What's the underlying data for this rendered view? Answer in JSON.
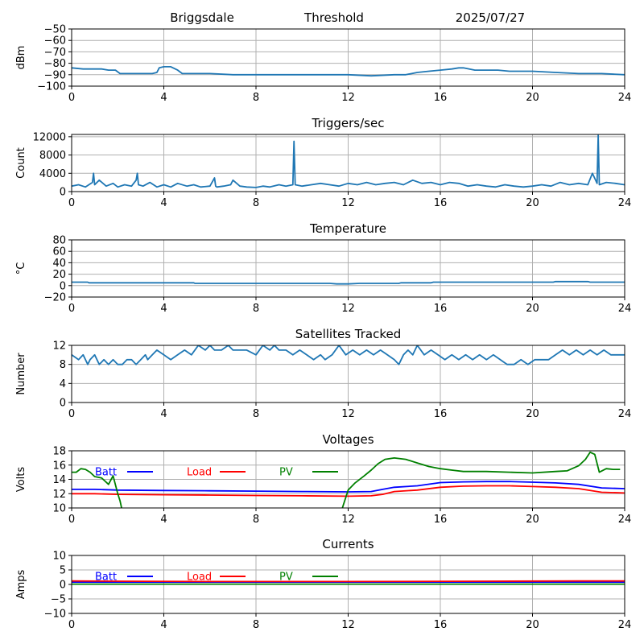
{
  "header": {
    "station": "Briggsdale",
    "panel": "Threshold",
    "date": "2025/07/27"
  },
  "colors": {
    "series_default": "#1f77b4",
    "batt": "#0000ff",
    "load": "#ff0000",
    "pv": "#008000",
    "grid": "#b0b0b0"
  },
  "chart_data": [
    {
      "id": "threshold",
      "type": "line",
      "title": "",
      "xlabel": "",
      "ylabel": "dBm",
      "xlim": [
        0,
        24
      ],
      "ylim": [
        -100,
        -50
      ],
      "xticks": [
        0,
        4,
        8,
        12,
        16,
        20,
        24
      ],
      "yticks": [
        -100,
        -90,
        -80,
        -70,
        -60,
        -50
      ],
      "grid": true,
      "series": [
        {
          "color": "#1f77b4",
          "x": [
            0,
            0.5,
            1,
            1.3,
            1.6,
            1.9,
            2.1,
            2.5,
            3,
            3.5,
            3.7,
            3.8,
            4,
            4.3,
            4.6,
            4.8,
            5,
            6,
            7,
            8,
            9,
            10,
            11,
            12,
            13,
            14,
            14.5,
            15,
            15.5,
            16,
            16.5,
            16.8,
            17,
            17.5,
            18,
            18.5,
            19,
            20,
            21,
            22,
            23,
            24
          ],
          "y": [
            -84,
            -85,
            -85,
            -85,
            -86,
            -86,
            -89,
            -89,
            -89,
            -89,
            -88,
            -84,
            -83,
            -83,
            -86,
            -89,
            -89,
            -89,
            -90,
            -90,
            -90,
            -90,
            -90,
            -90,
            -91,
            -90,
            -90,
            -88,
            -87,
            -86,
            -85,
            -84,
            -84,
            -86,
            -86,
            -86,
            -87,
            -87,
            -88,
            -89,
            -89,
            -90
          ]
        }
      ]
    },
    {
      "id": "triggers",
      "type": "line",
      "title": "Triggers/sec",
      "xlabel": "",
      "ylabel": "Count",
      "xlim": [
        0,
        24
      ],
      "ylim": [
        0,
        12500
      ],
      "xticks": [
        0,
        4,
        8,
        12,
        16,
        20,
        24
      ],
      "yticks": [
        0,
        4000,
        8000,
        12000
      ],
      "grid": true,
      "series": [
        {
          "color": "#1f77b4",
          "x": [
            0,
            0.3,
            0.6,
            0.9,
            0.95,
            1.0,
            1.2,
            1.5,
            1.8,
            2.0,
            2.3,
            2.6,
            2.8,
            2.85,
            2.9,
            3.1,
            3.4,
            3.7,
            4.0,
            4.3,
            4.6,
            5.0,
            5.3,
            5.6,
            6.0,
            6.2,
            6.25,
            6.3,
            6.6,
            6.9,
            7.0,
            7.3,
            7.6,
            8.0,
            8.3,
            8.6,
            9.0,
            9.3,
            9.6,
            9.65,
            9.7,
            10.0,
            10.4,
            10.8,
            11.2,
            11.6,
            12.0,
            12.4,
            12.8,
            13.2,
            13.6,
            14.0,
            14.4,
            14.8,
            15.2,
            15.6,
            16.0,
            16.4,
            16.8,
            17.2,
            17.6,
            18.0,
            18.4,
            18.8,
            19.2,
            19.6,
            20.0,
            20.4,
            20.8,
            21.2,
            21.6,
            22.0,
            22.4,
            22.6,
            22.8,
            22.85,
            22.9,
            23.2,
            23.6,
            24.0
          ],
          "y": [
            1200,
            1500,
            1000,
            2000,
            4000,
            1500,
            2500,
            1200,
            1800,
            1000,
            1500,
            1200,
            2500,
            4000,
            1500,
            1200,
            2000,
            1000,
            1500,
            1000,
            1800,
            1200,
            1500,
            1000,
            1200,
            3000,
            1200,
            1000,
            1200,
            1500,
            2500,
            1200,
            1000,
            900,
            1200,
            1000,
            1500,
            1200,
            1500,
            11000,
            1500,
            1200,
            1500,
            1800,
            1500,
            1200,
            1800,
            1500,
            2000,
            1500,
            1800,
            2000,
            1500,
            2500,
            1800,
            2000,
            1500,
            2000,
            1800,
            1200,
            1500,
            1200,
            1000,
            1500,
            1200,
            1000,
            1200,
            1500,
            1200,
            2000,
            1500,
            1800,
            1500,
            4000,
            1800,
            12300,
            1500,
            2000,
            1800,
            1500
          ]
        }
      ]
    },
    {
      "id": "temperature",
      "type": "line",
      "title": "Temperature",
      "xlabel": "",
      "ylabel": "°C",
      "xlim": [
        0,
        24
      ],
      "ylim": [
        -20,
        80
      ],
      "xticks": [
        0,
        4,
        8,
        12,
        16,
        20,
        24
      ],
      "yticks": [
        -20,
        0,
        20,
        40,
        60,
        80
      ],
      "grid": true,
      "series": [
        {
          "color": "#1f77b4",
          "x": [
            0,
            0.7,
            0.75,
            5.3,
            5.35,
            11.2,
            11.5,
            12,
            12.5,
            14.2,
            14.3,
            15.6,
            15.7,
            20.9,
            21,
            22.4,
            22.5,
            24
          ],
          "y": [
            6,
            6,
            5,
            5,
            4,
            4,
            3,
            3,
            4,
            4,
            5,
            5,
            6,
            6,
            7,
            7,
            6,
            6
          ]
        }
      ]
    },
    {
      "id": "satellites",
      "type": "line",
      "title": "Satellites Tracked",
      "xlabel": "",
      "ylabel": "Number",
      "xlim": [
        0,
        24
      ],
      "ylim": [
        0,
        12
      ],
      "xticks": [
        0,
        4,
        8,
        12,
        16,
        20,
        24
      ],
      "yticks": [
        0,
        4,
        8,
        12
      ],
      "grid": true,
      "series": [
        {
          "color": "#1f77b4",
          "x": [
            0,
            0.3,
            0.5,
            0.7,
            0.8,
            1.0,
            1.2,
            1.4,
            1.6,
            1.8,
            2.0,
            2.2,
            2.4,
            2.6,
            2.8,
            3.0,
            3.2,
            3.3,
            3.5,
            3.7,
            4.0,
            4.3,
            4.6,
            4.9,
            5.2,
            5.5,
            5.8,
            6.0,
            6.2,
            6.5,
            6.8,
            7.0,
            7.3,
            7.6,
            8.0,
            8.3,
            8.6,
            8.8,
            9.0,
            9.3,
            9.6,
            9.9,
            10.2,
            10.5,
            10.8,
            11.0,
            11.3,
            11.6,
            11.9,
            12.2,
            12.5,
            12.8,
            13.1,
            13.4,
            13.7,
            14.0,
            14.2,
            14.4,
            14.6,
            14.8,
            15.0,
            15.3,
            15.6,
            15.9,
            16.2,
            16.5,
            16.8,
            17.1,
            17.4,
            17.7,
            18.0,
            18.3,
            18.6,
            18.9,
            19.2,
            19.5,
            19.8,
            20.1,
            20.4,
            20.7,
            21.0,
            21.3,
            21.6,
            21.9,
            22.2,
            22.5,
            22.8,
            23.1,
            23.4,
            23.7,
            24.0
          ],
          "y": [
            10,
            9,
            10,
            8,
            9,
            10,
            8,
            9,
            8,
            9,
            8,
            8,
            9,
            9,
            8,
            9,
            10,
            9,
            10,
            11,
            10,
            9,
            10,
            11,
            10,
            12,
            11,
            12,
            11,
            11,
            12,
            11,
            11,
            11,
            10,
            12,
            11,
            12,
            11,
            11,
            10,
            11,
            10,
            9,
            10,
            9,
            10,
            12,
            10,
            11,
            10,
            11,
            10,
            11,
            10,
            9,
            8,
            10,
            11,
            10,
            12,
            10,
            11,
            10,
            9,
            10,
            9,
            10,
            9,
            10,
            9,
            10,
            9,
            8,
            8,
            9,
            8,
            9,
            9,
            9,
            10,
            11,
            10,
            11,
            10,
            11,
            10,
            11,
            10,
            10,
            10
          ]
        }
      ]
    },
    {
      "id": "voltages",
      "type": "line",
      "title": "Voltages",
      "xlabel": "",
      "ylabel": "Volts",
      "xlim": [
        0,
        24
      ],
      "ylim": [
        10,
        18
      ],
      "xticks": [
        0,
        4,
        8,
        12,
        16,
        20,
        24
      ],
      "yticks": [
        10,
        12,
        14,
        16,
        18
      ],
      "grid": true,
      "legend": "inline-top",
      "series": [
        {
          "name": "Batt",
          "color": "#0000ff",
          "x": [
            0,
            1,
            2,
            4,
            6,
            8,
            10,
            12,
            13,
            13.5,
            14,
            15,
            16,
            17,
            18,
            19,
            20,
            21,
            22,
            23,
            24
          ],
          "y": [
            12.6,
            12.6,
            12.5,
            12.45,
            12.4,
            12.35,
            12.3,
            12.25,
            12.3,
            12.6,
            12.9,
            13.1,
            13.55,
            13.65,
            13.7,
            13.7,
            13.6,
            13.5,
            13.3,
            12.8,
            12.7
          ]
        },
        {
          "name": "Load",
          "color": "#ff0000",
          "x": [
            0,
            1,
            2,
            4,
            6,
            8,
            10,
            12,
            13,
            13.5,
            14,
            15,
            16,
            17,
            18,
            19,
            20,
            21,
            22,
            23,
            24
          ],
          "y": [
            12.0,
            12.0,
            11.9,
            11.85,
            11.8,
            11.75,
            11.7,
            11.65,
            11.7,
            11.9,
            12.3,
            12.5,
            12.9,
            13.05,
            13.1,
            13.1,
            13.0,
            12.9,
            12.7,
            12.2,
            12.1
          ],
          "legend_label": "Load"
        },
        {
          "name": "PV",
          "color": "#008000",
          "segments": [
            {
              "x": [
                0,
                0.2,
                0.4,
                0.6,
                0.8,
                1.0,
                1.3,
                1.6,
                1.8,
                2.0,
                2.1,
                2.2
              ],
              "y": [
                15.0,
                15.0,
                15.5,
                15.4,
                15.0,
                14.4,
                14.2,
                13.3,
                14.5,
                12.0,
                11.0,
                9.5
              ]
            },
            {
              "x": [
                11.7,
                12.0,
                12.3,
                12.7,
                13.0,
                13.3,
                13.6,
                14.0,
                14.5,
                15.0,
                15.5,
                16.0,
                16.5,
                17.0,
                18.0,
                19.0,
                20.0,
                21.0,
                21.5,
                22.0,
                22.3,
                22.5,
                22.7,
                22.9,
                23.2,
                23.5,
                23.8
              ],
              "y": [
                9.5,
                12.5,
                13.5,
                14.5,
                15.3,
                16.2,
                16.8,
                17.0,
                16.8,
                16.3,
                15.8,
                15.5,
                15.3,
                15.1,
                15.1,
                15.0,
                14.9,
                15.1,
                15.2,
                15.9,
                16.8,
                17.8,
                17.5,
                15.0,
                15.5,
                15.4,
                15.4
              ]
            }
          ]
        }
      ]
    },
    {
      "id": "currents",
      "type": "line",
      "title": "Currents",
      "xlabel": "",
      "ylabel": "Amps",
      "xlim": [
        0,
        24
      ],
      "ylim": [
        -10,
        10
      ],
      "xticks": [
        0,
        4,
        8,
        12,
        16,
        20,
        24
      ],
      "yticks": [
        -10,
        -5,
        0,
        5,
        10
      ],
      "grid": true,
      "legend": "inline-top",
      "series": [
        {
          "name": "Batt",
          "color": "#0000ff",
          "x": [
            0,
            24
          ],
          "y": [
            0.8,
            0.8
          ]
        },
        {
          "name": "Load",
          "color": "#ff0000",
          "x": [
            0,
            2,
            6,
            12,
            18,
            22,
            24
          ],
          "y": [
            1.2,
            1.1,
            1.0,
            1.0,
            1.1,
            1.2,
            1.2
          ]
        },
        {
          "name": "PV",
          "color": "#008000",
          "x": [
            0,
            24
          ],
          "y": [
            0.1,
            0.1
          ]
        }
      ]
    }
  ]
}
